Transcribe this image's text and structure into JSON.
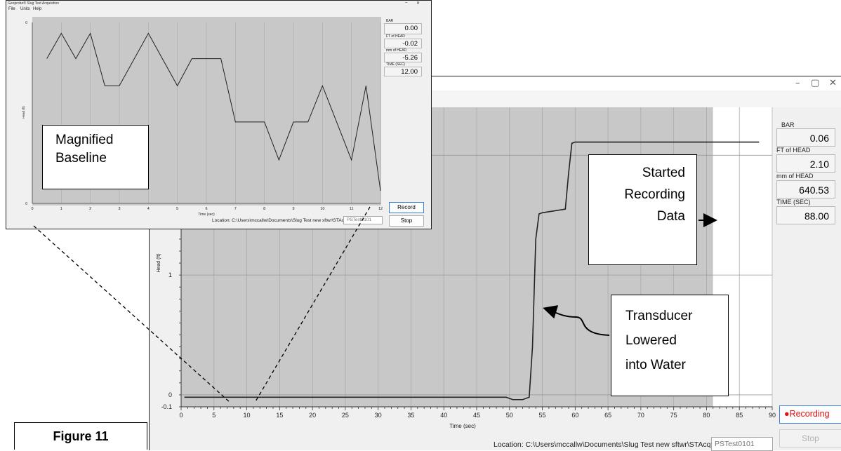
{
  "main_window": {
    "side_panel": {
      "bar": {
        "label": "BAR",
        "value": "0.06"
      },
      "ft_head": {
        "label": "FT of HEAD",
        "value": "2.10"
      },
      "mm_head": {
        "label": "mm of HEAD",
        "value": "640.53"
      },
      "time": {
        "label": "TIME (SEC)",
        "value": "88.00"
      }
    },
    "record_button": {
      "label": "Recording",
      "indicator_color": "#e01010"
    },
    "stop_button": {
      "label": "Stop"
    },
    "location": {
      "label": "Location: C:\\Users\\mccallw\\Documents\\Slug Test new sftwr\\STAcq files\\",
      "file_name": "PSTest0101"
    }
  },
  "inset_window": {
    "title": "Geoprobe® Slug Test Acquisition",
    "menu": [
      "File",
      "Units",
      "Help"
    ],
    "side_panel": {
      "bar": {
        "label": "BAR",
        "value": "0.00"
      },
      "ft_head": {
        "label": "FT of HEAD",
        "value": "-0.02"
      },
      "mm_head": {
        "label": "mm of HEAD",
        "value": "-5.26"
      },
      "time": {
        "label": "TIME (SEC)",
        "value": "12.00"
      }
    },
    "record_button": {
      "label": "Record"
    },
    "stop_button": {
      "label": "Stop"
    },
    "location": {
      "label": "Location: C:\\Users\\mccallw\\Documents\\Slug Test new sftwr\\STAcq files\\",
      "file_name": "PSTest0101"
    }
  },
  "callouts": {
    "magnified_baseline": [
      "Magnified",
      "Baseline"
    ],
    "started_recording": [
      "Started",
      "Recording",
      "Data"
    ],
    "transducer_lowered": [
      "Transducer",
      "Lowered",
      "into Water"
    ],
    "figure_label": "Figure 11"
  },
  "chart_data": [
    {
      "type": "line",
      "xlabel": "Time (sec)",
      "ylabel": "Head (ft)",
      "xlim": [
        0,
        90
      ],
      "ylim": [
        -0.1,
        2.4
      ],
      "xticks": [
        0,
        5,
        10,
        15,
        20,
        25,
        30,
        35,
        40,
        45,
        50,
        55,
        60,
        65,
        70,
        75,
        80,
        85,
        90
      ],
      "yticks": [
        -0.1,
        0,
        1
      ],
      "ytick_labels": [
        "-0.1",
        "0",
        "1"
      ],
      "recording_start_x": 81,
      "grid": true,
      "series": [
        {
          "x": [
            0.5,
            48.5,
            49.5,
            50.5,
            52,
            53,
            53.5,
            54,
            54.5,
            55,
            58.5,
            59,
            59.5,
            60,
            88
          ],
          "y": [
            -0.02,
            -0.02,
            -0.02,
            -0.04,
            -0.04,
            -0.02,
            0.4,
            1.3,
            1.51,
            1.52,
            1.55,
            1.85,
            2.1,
            2.11,
            2.11
          ],
          "color": "#222222"
        }
      ]
    },
    {
      "type": "line",
      "xlabel": "Time (sec)",
      "ylabel": "Head (ft)",
      "xlim": [
        0,
        12
      ],
      "xticks": [
        0,
        1,
        2,
        3,
        4,
        5,
        6,
        7,
        8,
        9,
        10,
        11,
        12
      ],
      "ytick_labels": [
        "0",
        "0"
      ],
      "grid": true,
      "series": [
        {
          "x": [
            0.5,
            1,
            1.5,
            2,
            2.5,
            3,
            4,
            5,
            5.5,
            6,
            6.5,
            7,
            7.5,
            8,
            8.5,
            9,
            9.5,
            10,
            11,
            11.5,
            12
          ],
          "y": [
            0.8,
            0.94,
            0.8,
            0.94,
            0.65,
            0.65,
            0.94,
            0.65,
            0.8,
            0.8,
            0.8,
            0.45,
            0.45,
            0.45,
            0.24,
            0.45,
            0.45,
            0.65,
            0.24,
            0.65,
            0.07
          ],
          "color": "#222222"
        }
      ]
    }
  ]
}
